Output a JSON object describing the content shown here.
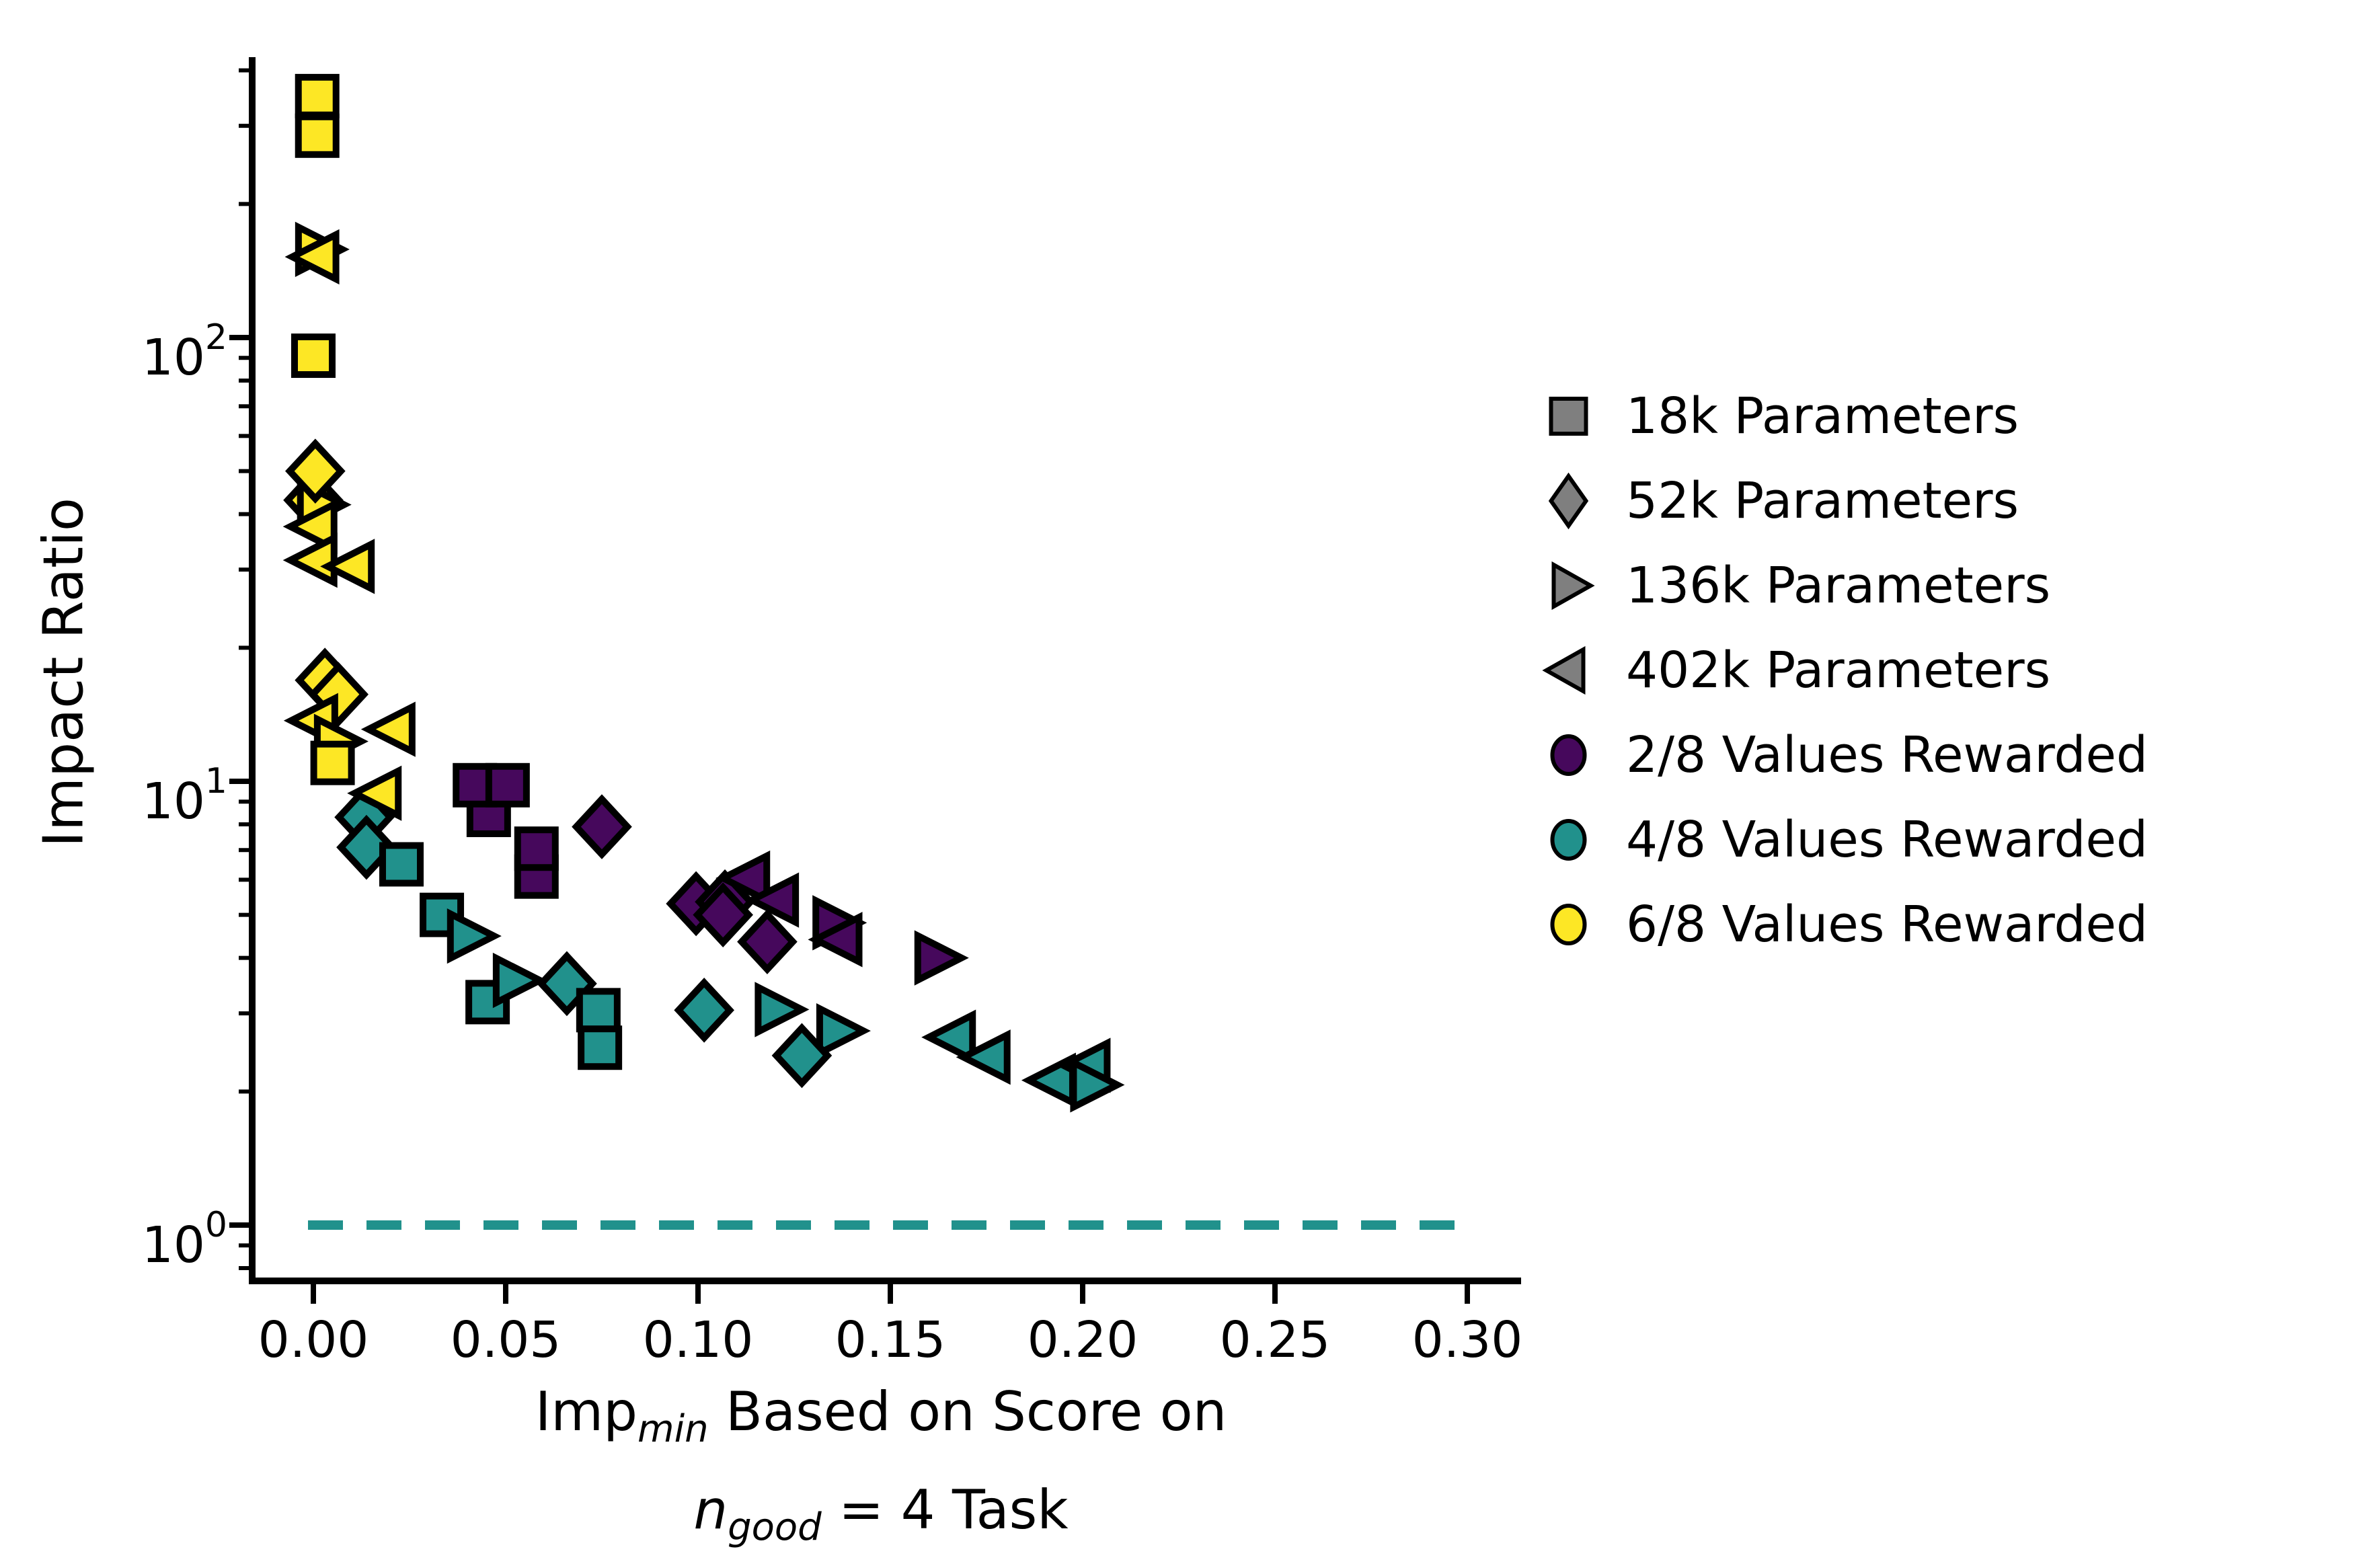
{
  "chart_data": {
    "type": "scatter",
    "title": "",
    "ylabel": "Impact Ratio",
    "xlabel": {
      "l1a": "Imp",
      "l1sub": "min",
      "l1b": " Based on Score on",
      "l2a": "n",
      "l2sub": "good",
      "l2b": " = 4 Task"
    },
    "x_axis": {
      "min": -0.016,
      "max": 0.314,
      "ticks": [
        0.0,
        0.05,
        0.1,
        0.15,
        0.2,
        0.25,
        0.3
      ],
      "tick_labels": [
        "0.00",
        "0.05",
        "0.10",
        "0.15",
        "0.20",
        "0.25",
        "0.30"
      ]
    },
    "y_axis": {
      "scale": "log",
      "min": 0.75,
      "max": 430,
      "ticks": [
        {
          "value": 100,
          "base": "10",
          "exp": "2"
        },
        {
          "value": 10,
          "base": "10",
          "exp": "1"
        },
        {
          "value": 1,
          "base": "10",
          "exp": "0"
        }
      ]
    },
    "baseline": {
      "y": 1.0,
      "color": "#21918c",
      "style": "dashed"
    },
    "grid": false,
    "legend_position": "right",
    "series": [
      {
        "name": "2/8 Values Rewarded",
        "color": "#46085c",
        "points": [
          {
            "x": 0.0456,
            "r": 8.4,
            "shape": "square",
            "params": "18k"
          },
          {
            "x": 0.042,
            "r": 9.8,
            "shape": "square",
            "params": "18k"
          },
          {
            "x": 0.0505,
            "r": 9.8,
            "shape": "square",
            "params": "18k"
          },
          {
            "x": 0.058,
            "r": 6.1,
            "shape": "square",
            "params": "18k"
          },
          {
            "x": 0.058,
            "r": 7.05,
            "shape": "square",
            "params": "18k"
          },
          {
            "x": 0.075,
            "r": 7.9,
            "shape": "diamond",
            "params": "52k"
          },
          {
            "x": 0.0995,
            "r": 5.3,
            "shape": "diamond",
            "params": "52k"
          },
          {
            "x": 0.107,
            "r": 5.35,
            "shape": "diamond",
            "params": "52k"
          },
          {
            "x": 0.1065,
            "r": 5.0,
            "shape": "diamond",
            "params": "52k"
          },
          {
            "x": 0.118,
            "r": 4.35,
            "shape": "diamond",
            "params": "52k"
          },
          {
            "x": 0.1135,
            "r": 6.05,
            "shape": "triangle-left",
            "params": "402k"
          },
          {
            "x": 0.121,
            "r": 5.4,
            "shape": "triangle-left",
            "params": "402k"
          },
          {
            "x": 0.135,
            "r": 4.8,
            "shape": "triangle-right",
            "params": "136k"
          },
          {
            "x": 0.1375,
            "r": 4.4,
            "shape": "triangle-left",
            "params": "402k"
          },
          {
            "x": 0.1615,
            "r": 4.0,
            "shape": "triangle-right",
            "params": "136k"
          }
        ]
      },
      {
        "name": "4/8 Values Rewarded",
        "color": "#21918c",
        "points": [
          {
            "x": 0.0133,
            "r": 8.3,
            "shape": "diamond",
            "params": "52k"
          },
          {
            "x": 0.0138,
            "r": 7.1,
            "shape": "diamond",
            "params": "52k"
          },
          {
            "x": 0.0229,
            "r": 6.5,
            "shape": "square",
            "params": "18k"
          },
          {
            "x": 0.0334,
            "r": 5.0,
            "shape": "square",
            "params": "18k"
          },
          {
            "x": 0.04,
            "r": 4.48,
            "shape": "triangle-right",
            "params": "136k"
          },
          {
            "x": 0.0453,
            "r": 3.18,
            "shape": "square",
            "params": "18k"
          },
          {
            "x": 0.0519,
            "r": 3.56,
            "shape": "triangle-right",
            "params": "136k"
          },
          {
            "x": 0.0659,
            "r": 3.5,
            "shape": "diamond",
            "params": "52k"
          },
          {
            "x": 0.0741,
            "r": 3.05,
            "shape": "square",
            "params": "18k"
          },
          {
            "x": 0.0745,
            "r": 2.51,
            "shape": "square",
            "params": "18k"
          },
          {
            "x": 0.1016,
            "r": 3.05,
            "shape": "diamond",
            "params": "52k"
          },
          {
            "x": 0.12,
            "r": 3.06,
            "shape": "triangle-right",
            "params": "136k"
          },
          {
            "x": 0.136,
            "r": 2.74,
            "shape": "triangle-right",
            "params": "136k"
          },
          {
            "x": 0.127,
            "r": 2.41,
            "shape": "diamond",
            "params": "52k"
          },
          {
            "x": 0.167,
            "r": 2.65,
            "shape": "triangle-left",
            "params": "402k"
          },
          {
            "x": 0.176,
            "r": 2.39,
            "shape": "triangle-left",
            "params": "402k"
          },
          {
            "x": 0.193,
            "r": 2.12,
            "shape": "triangle-left",
            "params": "402k"
          },
          {
            "x": 0.202,
            "r": 2.29,
            "shape": "triangle-left",
            "params": "402k"
          },
          {
            "x": 0.202,
            "r": 2.07,
            "shape": "triangle-right",
            "params": "136k"
          }
        ]
      },
      {
        "name": "6/8 Values Rewarded",
        "color": "#fde725",
        "points": [
          {
            "x": 0.001,
            "r": 350,
            "shape": "square",
            "params": "18k"
          },
          {
            "x": 0.001,
            "r": 285,
            "shape": "square",
            "params": "18k"
          },
          {
            "x": 0.0005,
            "r": 158,
            "shape": "triangle-right",
            "params": "136k"
          },
          {
            "x": 0.0015,
            "r": 152,
            "shape": "triangle-left",
            "params": "402k"
          },
          {
            "x": 0.0,
            "r": 91,
            "shape": "square",
            "params": "18k"
          },
          {
            "x": 0.0,
            "r": 43,
            "shape": "diamond",
            "params": "52k"
          },
          {
            "x": 0.001,
            "r": 42,
            "shape": "triangle-right",
            "params": "136k"
          },
          {
            "x": 0.0005,
            "r": 50,
            "shape": "diamond",
            "params": "52k"
          },
          {
            "x": 0.001,
            "r": 37.5,
            "shape": "triangle-left",
            "params": "402k"
          },
          {
            "x": 0.001,
            "r": 31.5,
            "shape": "triangle-left",
            "params": "402k"
          },
          {
            "x": 0.0107,
            "r": 30.5,
            "shape": "triangle-left",
            "params": "402k"
          },
          {
            "x": 0.003,
            "r": 16.9,
            "shape": "diamond",
            "params": "52k"
          },
          {
            "x": 0.0065,
            "r": 15.7,
            "shape": "diamond",
            "params": "52k"
          },
          {
            "x": 0.0012,
            "r": 13.7,
            "shape": "triangle-left",
            "params": "402k"
          },
          {
            "x": 0.0213,
            "r": 13.1,
            "shape": "triangle-left",
            "params": "402k"
          },
          {
            "x": 0.0054,
            "r": 12.3,
            "shape": "triangle-right",
            "params": "136k"
          },
          {
            "x": 0.005,
            "r": 11.0,
            "shape": "square",
            "params": "18k"
          },
          {
            "x": 0.0177,
            "r": 9.4,
            "shape": "triangle-left",
            "params": "402k"
          }
        ]
      }
    ],
    "legend": {
      "items": [
        {
          "label": "18k Parameters",
          "shape": "square",
          "color": "#7f7f7f"
        },
        {
          "label": "52k Parameters",
          "shape": "diamond",
          "color": "#7f7f7f"
        },
        {
          "label": "136k Parameters",
          "shape": "triangle-right",
          "color": "#7f7f7f"
        },
        {
          "label": "402k Parameters",
          "shape": "triangle-left",
          "color": "#7f7f7f"
        },
        {
          "label": "2/8 Values Rewarded",
          "shape": "circle",
          "color": "#46085c"
        },
        {
          "label": "4/8 Values Rewarded",
          "shape": "circle",
          "color": "#21918c"
        },
        {
          "label": "6/8 Values Rewarded",
          "shape": "circle",
          "color": "#fde725"
        }
      ]
    }
  }
}
